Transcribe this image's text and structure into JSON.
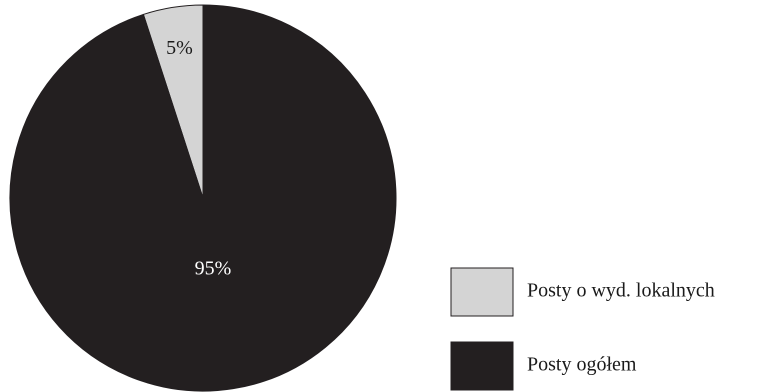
{
  "chart_data": {
    "type": "pie",
    "title": "",
    "slices": [
      {
        "label": "Posty o wyd. lokalnych",
        "value": 5,
        "value_label": "5%",
        "color": "#d4d4d4",
        "label_color": "#1a1a1a"
      },
      {
        "label": "Posty ogółem",
        "value": 95,
        "value_label": "95%",
        "color": "#231f20",
        "label_color": "#ffffff"
      }
    ],
    "start_angle": "12 o'clock",
    "direction": "counterclockwise",
    "legend_position": "bottom-right",
    "outline_color": "#231f20"
  }
}
